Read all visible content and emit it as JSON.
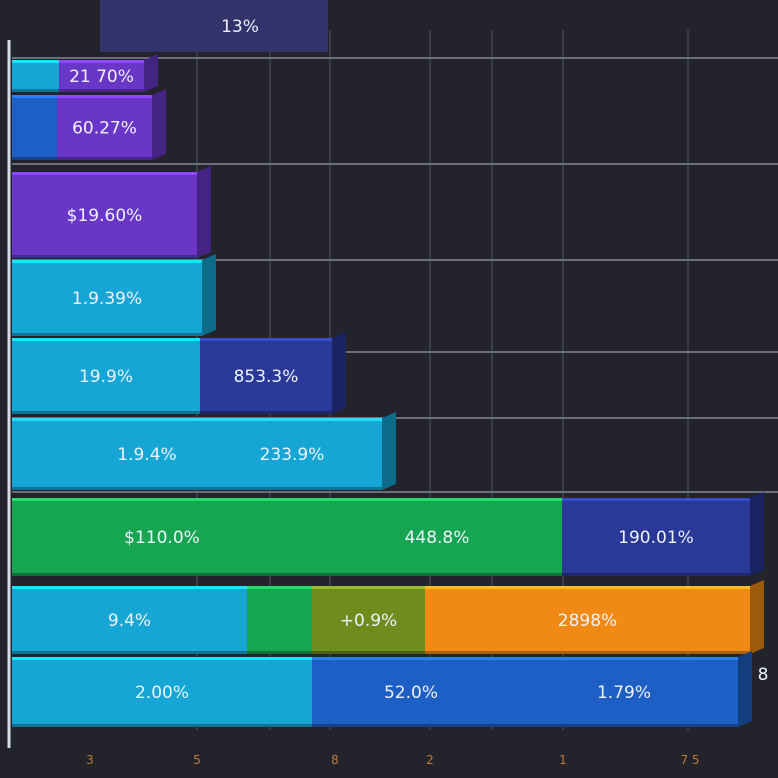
{
  "chart_data": {
    "type": "bar",
    "orientation": "horizontal",
    "stacked": true,
    "title": "",
    "xlabel": "",
    "ylabel": "",
    "grid": true,
    "colors": {
      "background": "#23242b",
      "grid": "#3a3d47",
      "cyan": "#16a6d6",
      "blue": "#1d5fc4",
      "purple": "#6a36c8",
      "navy": "#2a3898",
      "green": "#16a550",
      "orange": "#f08a14",
      "olive": "#6f8c1e"
    },
    "header_label": "13%",
    "x_ticks": [
      "3",
      "5",
      "8",
      "2",
      "1",
      "7 5"
    ],
    "side_label": "8",
    "rows": [
      {
        "segments": [
          {
            "label": "",
            "value": 47,
            "color": "cyan"
          },
          {
            "label": "21 70%",
            "value": 85,
            "color": "purple"
          }
        ]
      },
      {
        "segments": [
          {
            "label": "",
            "value": 45,
            "color": "blue"
          },
          {
            "label": "60.27%",
            "value": 95,
            "color": "purple"
          }
        ]
      },
      {
        "segments": [
          {
            "label": "$19.60%",
            "value": 185,
            "color": "purple"
          }
        ]
      },
      {
        "segments": [
          {
            "label": "1.9.39%",
            "value": 190,
            "color": "cyan"
          }
        ]
      },
      {
        "segments": [
          {
            "label": "19.9%",
            "value": 188,
            "color": "cyan"
          },
          {
            "label": "853.3%",
            "value": 132,
            "color": "navy"
          }
        ]
      },
      {
        "segments": [
          {
            "label": "",
            "value": 80,
            "color": "cyan"
          },
          {
            "label": "1.9.4%",
            "value": 110,
            "color": "cyan"
          },
          {
            "label": "233.9%",
            "value": 180,
            "color": "cyan"
          }
        ]
      },
      {
        "segments": [
          {
            "label": "$110.0%",
            "value": 300,
            "color": "green"
          },
          {
            "label": "448.8%",
            "value": 250,
            "color": "green"
          },
          {
            "label": "190.01%",
            "value": 188,
            "color": "navy"
          }
        ]
      },
      {
        "segments": [
          {
            "label": "9.4%",
            "value": 235,
            "color": "cyan"
          },
          {
            "label": "",
            "value": 65,
            "color": "green"
          },
          {
            "label": "+0.9%",
            "value": 113,
            "color": "olive"
          },
          {
            "label": "2898%",
            "value": 325,
            "color": "orange"
          }
        ]
      },
      {
        "segments": [
          {
            "label": "2.00%",
            "value": 300,
            "color": "cyan"
          },
          {
            "label": "52.0%",
            "value": 198,
            "color": "blue"
          },
          {
            "label": "1.79%",
            "value": 228,
            "color": "blue"
          }
        ]
      }
    ]
  }
}
